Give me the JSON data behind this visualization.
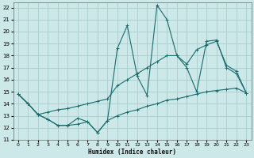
{
  "xlabel": "Humidex (Indice chaleur)",
  "bg_color": "#cce8e8",
  "grid_color": "#aacccc",
  "line_color": "#1a6b6b",
  "xlim": [
    -0.5,
    23.5
  ],
  "ylim": [
    11,
    22.4
  ],
  "yticks": [
    11,
    12,
    13,
    14,
    15,
    16,
    17,
    18,
    19,
    20,
    21,
    22
  ],
  "xticks": [
    0,
    1,
    2,
    3,
    4,
    5,
    6,
    7,
    8,
    9,
    10,
    11,
    12,
    13,
    14,
    15,
    16,
    17,
    18,
    19,
    20,
    21,
    22,
    23
  ],
  "line1_x": [
    0,
    1,
    2,
    3,
    4,
    5,
    6,
    7,
    8,
    9,
    10,
    11,
    12,
    13,
    14,
    15,
    16,
    17,
    18,
    19,
    20,
    21,
    22,
    23
  ],
  "line1_y": [
    14.8,
    14.0,
    13.1,
    12.7,
    12.2,
    12.2,
    12.8,
    12.5,
    11.6,
    12.6,
    18.6,
    20.5,
    16.3,
    14.7,
    22.2,
    21.0,
    18.0,
    17.0,
    15.0,
    19.2,
    19.3,
    17.0,
    16.5,
    14.9
  ],
  "line2_x": [
    0,
    1,
    2,
    3,
    4,
    5,
    6,
    7,
    8,
    9,
    10,
    11,
    12,
    13,
    14,
    15,
    16,
    17,
    18,
    19,
    20,
    21,
    22,
    23
  ],
  "line2_y": [
    14.8,
    14.0,
    13.1,
    13.3,
    13.5,
    13.6,
    13.8,
    14.0,
    14.2,
    14.4,
    15.5,
    16.0,
    16.5,
    17.0,
    17.5,
    18.0,
    18.0,
    17.3,
    18.5,
    18.9,
    19.2,
    17.2,
    16.7,
    14.9
  ],
  "line3_x": [
    0,
    1,
    2,
    3,
    4,
    5,
    6,
    7,
    8,
    9,
    10,
    11,
    12,
    13,
    14,
    15,
    16,
    17,
    18,
    19,
    20,
    21,
    22,
    23
  ],
  "line3_y": [
    14.8,
    14.0,
    13.1,
    12.7,
    12.2,
    12.2,
    12.3,
    12.5,
    11.6,
    12.6,
    13.0,
    13.3,
    13.5,
    13.8,
    14.0,
    14.3,
    14.4,
    14.6,
    14.8,
    15.0,
    15.1,
    15.2,
    15.3,
    14.9
  ]
}
